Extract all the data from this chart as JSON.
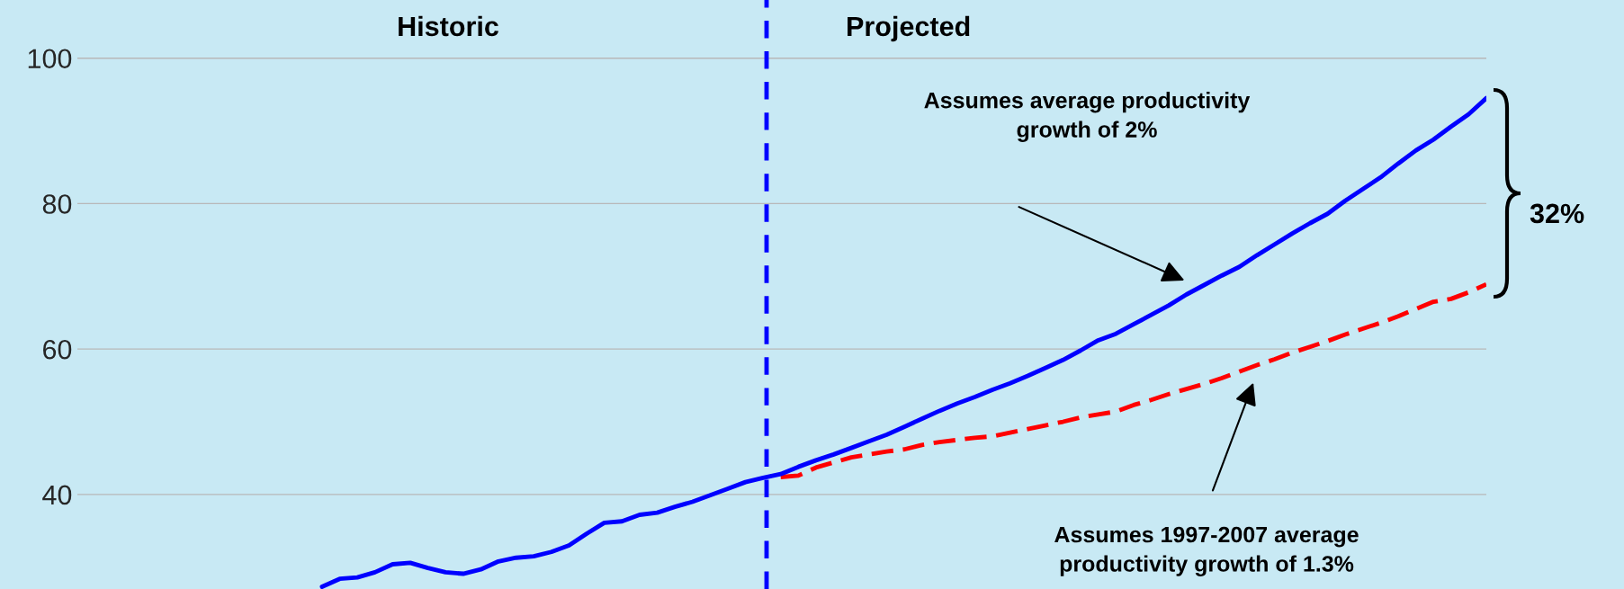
{
  "chart_data": {
    "type": "line",
    "categories": [
      null,
      null,
      null,
      null,
      null,
      null,
      null,
      null,
      null,
      null,
      null,
      null,
      null,
      null,
      null,
      null,
      null,
      null,
      null,
      null,
      null,
      null,
      null,
      null,
      null,
      null,
      null,
      null,
      null,
      null,
      null,
      null,
      null,
      null,
      null,
      null,
      null,
      null,
      null,
      null,
      null,
      null,
      null,
      null,
      null,
      null,
      null,
      null,
      null,
      null,
      null,
      null,
      null,
      null,
      null,
      null,
      null,
      null,
      null,
      null,
      null,
      null,
      null,
      null,
      null,
      null,
      null
    ],
    "series": [
      {
        "color": "#ff0000",
        "line_style": "dashed",
        "values": [
          null,
          null,
          null,
          null,
          null,
          null,
          null,
          null,
          null,
          null,
          null,
          null,
          null,
          null,
          null,
          null,
          null,
          null,
          null,
          null,
          null,
          null,
          null,
          null,
          null,
          null,
          42.4,
          42.6,
          43.7,
          44.4,
          45.1,
          45.5,
          45.9,
          46.2,
          46.8,
          47.2,
          47.5,
          47.8,
          48.0,
          48.5,
          49.0,
          49.5,
          50.0,
          50.6,
          51.0,
          51.4,
          52.3,
          53.0,
          53.8,
          54.5,
          55.2,
          56.0,
          56.9,
          57.8,
          58.6,
          59.5,
          60.3,
          61.1,
          62.0,
          62.8,
          63.6,
          64.5,
          65.5,
          66.5,
          66.9,
          67.8,
          68.9
        ]
      },
      {
        "color": "#0000ff",
        "line_style": "solid",
        "values": [
          27.3,
          28.4,
          28.6,
          29.3,
          30.4,
          30.6,
          29.9,
          29.3,
          29.1,
          29.7,
          30.8,
          31.3,
          31.5,
          32.1,
          33.0,
          34.6,
          36.1,
          36.3,
          37.2,
          37.5,
          38.3,
          39.0,
          39.9,
          40.8,
          41.7,
          42.3,
          42.8,
          43.8,
          44.7,
          45.5,
          46.4,
          47.3,
          48.2,
          49.3,
          50.4,
          51.5,
          52.5,
          53.4,
          54.4,
          55.3,
          56.3,
          57.4,
          58.5,
          59.8,
          61.2,
          62.1,
          63.4,
          64.7,
          66.0,
          67.5,
          68.8,
          70.1,
          71.3,
          72.9,
          74.4,
          75.9,
          77.3,
          78.6,
          80.4,
          82.0,
          83.6,
          85.5,
          87.3,
          88.8,
          90.6,
          92.3,
          94.5
        ]
      }
    ],
    "ylim": [
      27,
      108
    ],
    "yticks": [
      40,
      60,
      80,
      100
    ],
    "grid": "y",
    "tick_labels": "y",
    "marker": "none",
    "annotations": [
      "Historic",
      "Projected",
      "Assumes average productivity\ngrowth of 2%",
      "Assumes 1997-2007 average\nproductivity growth of 1.3%",
      "32%"
    ]
  }
}
